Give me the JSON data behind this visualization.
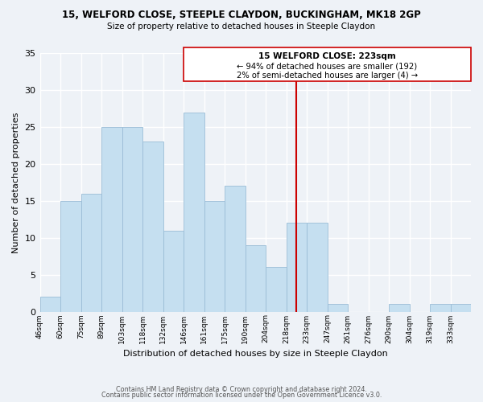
{
  "title": "15, WELFORD CLOSE, STEEPLE CLAYDON, BUCKINGHAM, MK18 2GP",
  "subtitle": "Size of property relative to detached houses in Steeple Claydon",
  "xlabel": "Distribution of detached houses by size in Steeple Claydon",
  "ylabel": "Number of detached properties",
  "bin_labels": [
    "46sqm",
    "60sqm",
    "75sqm",
    "89sqm",
    "103sqm",
    "118sqm",
    "132sqm",
    "146sqm",
    "161sqm",
    "175sqm",
    "190sqm",
    "204sqm",
    "218sqm",
    "233sqm",
    "247sqm",
    "261sqm",
    "276sqm",
    "290sqm",
    "304sqm",
    "319sqm",
    "333sqm"
  ],
  "counts": [
    2,
    15,
    16,
    25,
    25,
    23,
    11,
    27,
    15,
    17,
    9,
    6,
    12,
    12,
    1,
    0,
    0,
    1,
    0,
    1,
    1
  ],
  "bar_color": "#c5dff0",
  "bar_edgecolor": "#9abcd6",
  "property_index": 12,
  "vline_color": "#cc0000",
  "annotation_title": "15 WELFORD CLOSE: 223sqm",
  "annotation_line1": "← 94% of detached houses are smaller (192)",
  "annotation_line2": "2% of semi-detached houses are larger (4) →",
  "ylim": [
    0,
    35
  ],
  "yticks": [
    0,
    5,
    10,
    15,
    20,
    25,
    30,
    35
  ],
  "background_color": "#eef2f7",
  "grid_color": "#ffffff",
  "footer_line1": "Contains HM Land Registry data © Crown copyright and database right 2024.",
  "footer_line2": "Contains public sector information licensed under the Open Government Licence v3.0."
}
